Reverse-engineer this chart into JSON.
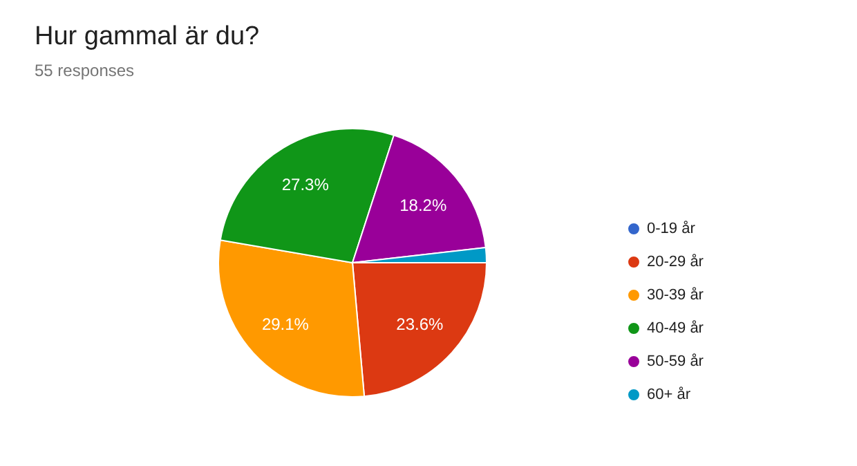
{
  "chart_data": {
    "type": "pie",
    "title": "Hur gammal är du?",
    "subtitle": "55 responses",
    "categories": [
      "0-19 år",
      "20-29 år",
      "30-39 år",
      "40-49 år",
      "50-59 år",
      "60+ år"
    ],
    "values": [
      0,
      23.6,
      29.1,
      27.3,
      18.2,
      1.8
    ],
    "value_labels": [
      null,
      "23.6%",
      "29.1%",
      "27.3%",
      "18.2%",
      null
    ],
    "colors": [
      "#3366cc",
      "#dc3912",
      "#ff9900",
      "#109618",
      "#990099",
      "#0099c6"
    ],
    "legend": "right"
  }
}
